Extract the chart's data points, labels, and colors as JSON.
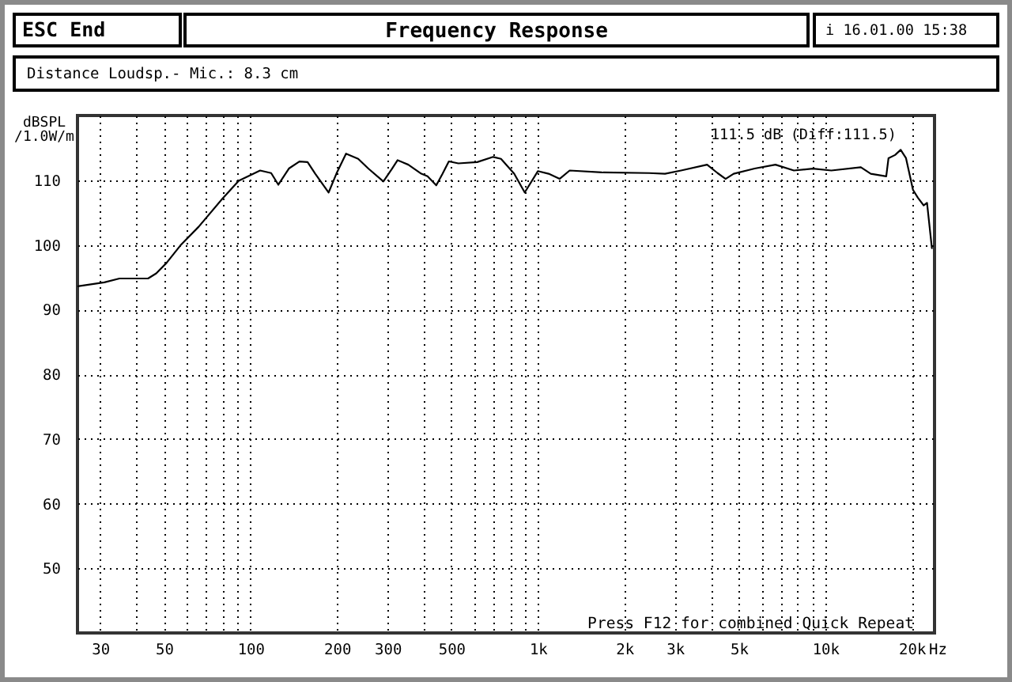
{
  "chart_data": {
    "type": "line",
    "title": "Frequency Response",
    "subtitle": "Distance Loudsp.- Mic.: 8.3 cm",
    "xlabel": "Hz",
    "ylabel": "dBSPL /1.0W/m",
    "annotations": [
      "ESC End",
      "i 16.01.00 15:38",
      "111.5 dB (Diff:111.5)",
      "Press F12 for combined Quick Repeat"
    ],
    "x": [
      25,
      31,
      35,
      44,
      47,
      51,
      57,
      66,
      79,
      91,
      108,
      118,
      125,
      136,
      148,
      158,
      168,
      187,
      199,
      215,
      237,
      257,
      290,
      311,
      325,
      354,
      393,
      413,
      443,
      466,
      490,
      529,
      615,
      699,
      744,
      827,
      900,
      1000,
      1090,
      1190,
      1290,
      1670,
      2440,
      2770,
      3150,
      3880,
      4220,
      4500,
      4800,
      5680,
      6710,
      7780,
      9060,
      10500,
      13300,
      14400,
      16300,
      16600,
      17500,
      18300,
      19100,
      20200,
      21000,
      22000,
      22600,
      23500
    ],
    "values": [
      93.6,
      94.2,
      94.8,
      94.8,
      95.6,
      97.2,
      99.9,
      102.8,
      106.9,
      109.9,
      111.5,
      111.1,
      109.3,
      111.8,
      112.9,
      112.8,
      111.0,
      108.1,
      111.0,
      114.1,
      113.3,
      111.8,
      109.8,
      111.8,
      113.1,
      112.4,
      111.0,
      110.6,
      109.2,
      111.0,
      112.9,
      112.6,
      112.8,
      113.6,
      113.3,
      111.0,
      108.1,
      111.4,
      111.0,
      110.2,
      111.5,
      111.2,
      111.1,
      111.0,
      111.5,
      112.4,
      111.1,
      110.2,
      111.0,
      111.8,
      112.4,
      111.5,
      111.8,
      111.5,
      112.0,
      111.0,
      110.6,
      113.4,
      113.9,
      114.7,
      113.4,
      108.5,
      107.3,
      106.1,
      106.5,
      99.5
    ],
    "color": "#000000",
    "log": "x",
    "xlim": [
      25,
      24000
    ],
    "ylim": [
      40,
      120
    ],
    "xticks": [
      30,
      {
        "value": 40,
        "label": null
      },
      50,
      {
        "value": 60,
        "label": null
      },
      {
        "value": 70,
        "label": null
      },
      {
        "value": 80,
        "label": null
      },
      {
        "value": 90,
        "label": null
      },
      100,
      200,
      300,
      {
        "value": 400,
        "label": null
      },
      500,
      {
        "value": 600,
        "label": null
      },
      {
        "value": 700,
        "label": null
      },
      {
        "value": 800,
        "label": null
      },
      {
        "value": 900,
        "label": null
      },
      {
        "value": 1000,
        "label": "1k"
      },
      {
        "value": 2000,
        "label": "2k"
      },
      {
        "value": 3000,
        "label": "3k"
      },
      {
        "value": 4000,
        "label": null
      },
      {
        "value": 5000,
        "label": "5k"
      },
      {
        "value": 6000,
        "label": null
      },
      {
        "value": 7000,
        "label": null
      },
      {
        "value": 8000,
        "label": null
      },
      {
        "value": 9000,
        "label": null
      },
      {
        "value": 10000,
        "label": "10k"
      },
      {
        "value": 20000,
        "label": "20k"
      }
    ],
    "yticks": [
      50,
      60,
      70,
      80,
      90,
      100,
      110
    ],
    "grid": true
  }
}
